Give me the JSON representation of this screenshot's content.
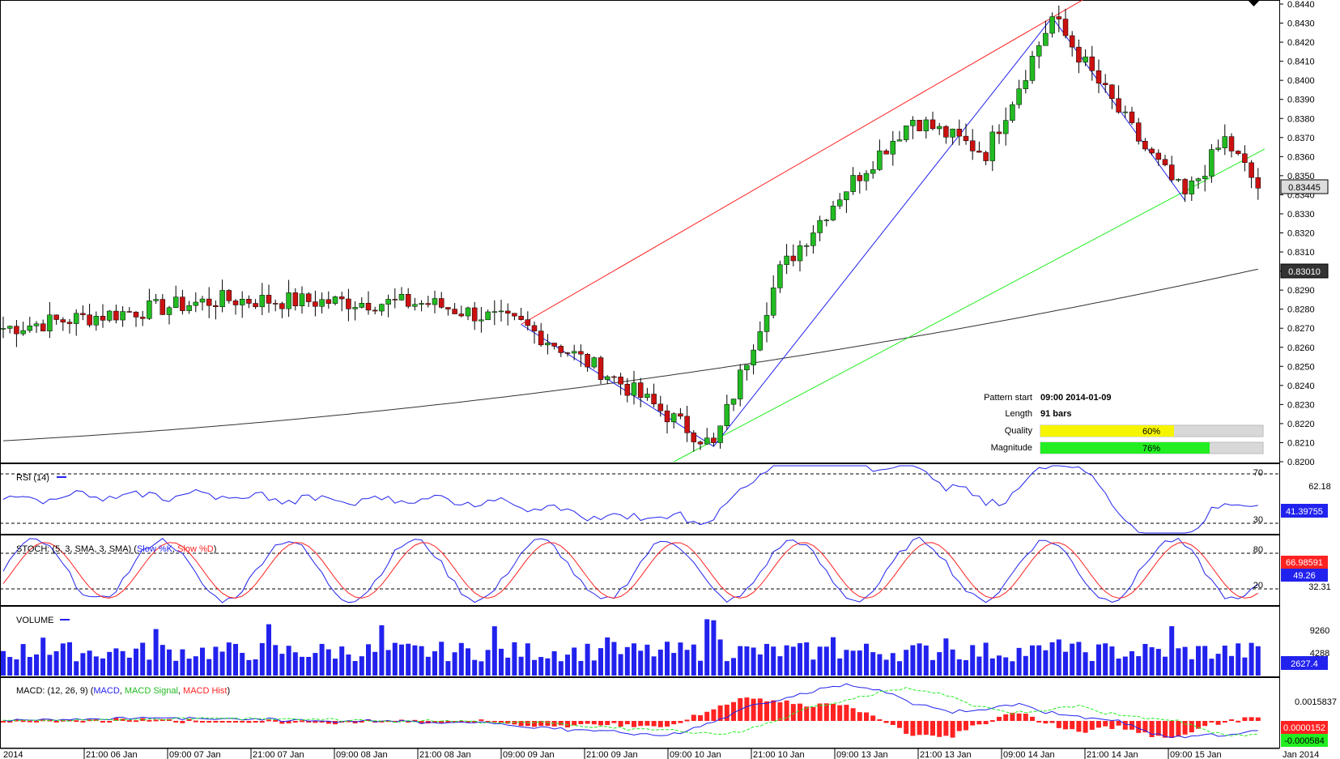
{
  "chart_data": {
    "type": "candlestick",
    "price_axis": {
      "ticks": [
        "0.8440",
        "0.8430",
        "0.8420",
        "0.8410",
        "0.8400",
        "0.8390",
        "0.8380",
        "0.8370",
        "0.8360",
        "0.8350",
        "0.8340",
        "0.8330",
        "0.8320",
        "0.8310",
        "0.8300",
        "0.8290",
        "0.8280",
        "0.8270",
        "0.8260",
        "0.8250",
        "0.8240",
        "0.8230",
        "0.8220",
        "0.8210",
        "0.8200"
      ],
      "range": [
        0.82,
        0.844
      ],
      "current_price": "0.83445",
      "ma_value": "0.83010"
    },
    "time_axis": {
      "labels": [
        "2014",
        "21:00 06 Jan",
        "09:00 07 Jan",
        "21:00 07 Jan",
        "09:00 08 Jan",
        "21:00 08 Jan",
        "09:00 09 Jan",
        "21:00 09 Jan",
        "09:00 10 Jan",
        "21:00 10 Jan",
        "09:00 13 Jan",
        "21:00 13 Jan",
        "09:00 14 Jan",
        "21:00 14 Jan",
        "09:00 15 Jan",
        "Jan 2014"
      ]
    },
    "pattern_anchors": [
      {
        "bar": 0,
        "price": 0.827
      },
      {
        "bar": 33,
        "price": 0.8285
      },
      {
        "bar": 64,
        "price": 0.8283
      },
      {
        "bar": 78,
        "price": 0.8272
      },
      {
        "bar": 91,
        "price": 0.8246
      },
      {
        "bar": 107,
        "price": 0.8208
      },
      {
        "bar": 117,
        "price": 0.83
      },
      {
        "bar": 126,
        "price": 0.834
      },
      {
        "bar": 137,
        "price": 0.838
      },
      {
        "bar": 148,
        "price": 0.8362
      },
      {
        "bar": 158,
        "price": 0.8433
      },
      {
        "bar": 172,
        "price": 0.8364
      },
      {
        "bar": 178,
        "price": 0.8339
      },
      {
        "bar": 184,
        "price": 0.8369
      },
      {
        "bar": 189,
        "price": 0.8344
      }
    ],
    "pattern_info": {
      "pattern_start_label": "Pattern start",
      "pattern_start_value": "09:00 2014-01-09",
      "length_label": "Length",
      "length_value": "91 bars",
      "quality_label": "Quality",
      "quality_value": "60%",
      "quality_fraction": 0.6,
      "magnitude_label": "Magnitude",
      "magnitude_value": "76%",
      "magnitude_fraction": 0.76
    },
    "rsi": {
      "title": "RSI (14)",
      "levels": [
        "70",
        "30"
      ],
      "value_mid": "62.18",
      "current": "41.39755"
    },
    "stoch": {
      "title_prefix": "STOCH: (5, 3, SMA, 3, SMA)",
      "k_name": "Slow %K",
      "d_name": "Slow %D",
      "levels": [
        "80",
        "20"
      ],
      "current_k": "49.26",
      "current_d": "66.98591",
      "value_low": "32.31"
    },
    "volume": {
      "title": "VOLUME",
      "tick_high": "9260",
      "tick_mid": "4288",
      "current": "2627.4"
    },
    "macd": {
      "title_prefix": "MACD: (12, 26, 9)",
      "macd_name": "MACD",
      "signal_name": "MACD Signal",
      "hist_name": "MACD Hist",
      "tick_high": "0.0015837",
      "current_hist": "0.0000152",
      "current_signal": "-0.000584"
    },
    "colors": {
      "up": "#22bb22",
      "down": "#cc1111",
      "blue": "#2222ee",
      "red": "#ff2222",
      "green": "#22ee22",
      "ma": "#333333",
      "quality": "#f5f500",
      "magnitude": "#22ee22"
    }
  }
}
